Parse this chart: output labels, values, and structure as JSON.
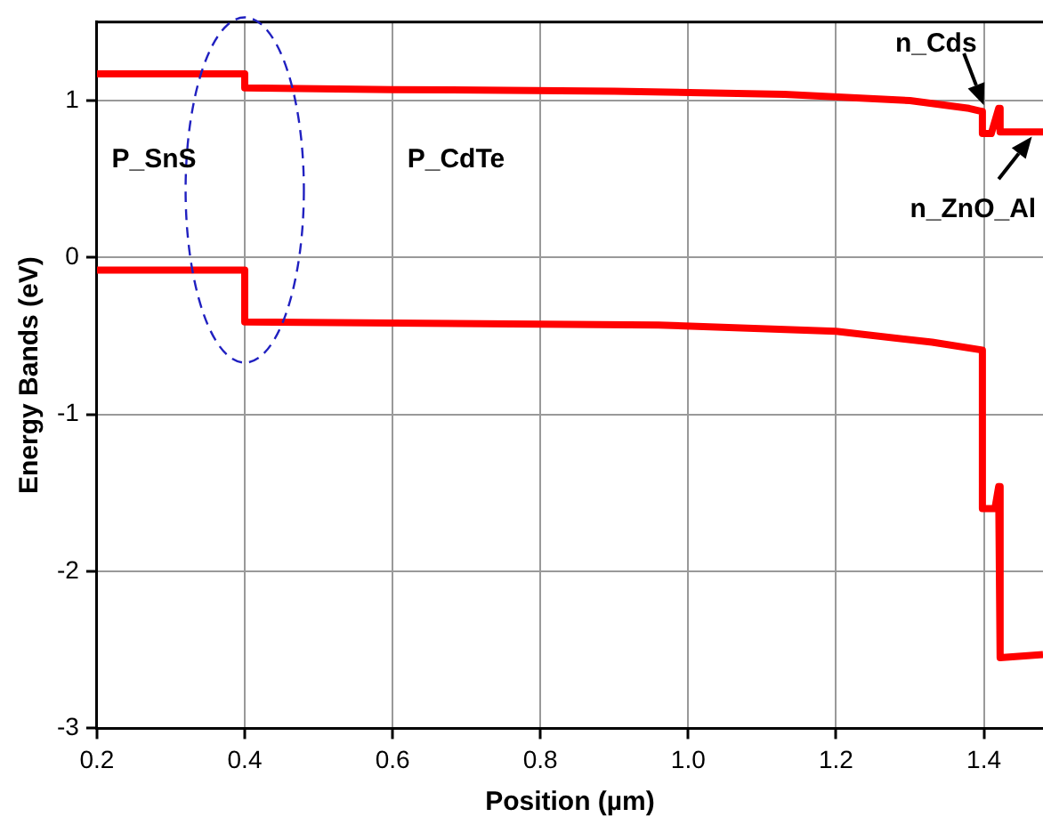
{
  "chart_data": {
    "type": "line",
    "xlabel": "Position (µm)",
    "ylabel": "Energy Bands (eV)",
    "xlim": [
      0.2,
      1.48
    ],
    "xticks": [
      {
        "value": 0.2,
        "label": "0.2"
      },
      {
        "value": 0.4,
        "label": "0.4"
      },
      {
        "value": 0.6,
        "label": "0.6"
      },
      {
        "value": 0.8,
        "label": "0.8"
      },
      {
        "value": 1.0,
        "label": "1.0"
      },
      {
        "value": 1.2,
        "label": "1.2"
      },
      {
        "value": 1.4,
        "label": "1.4"
      }
    ],
    "ylim": [
      -3,
      1.5
    ],
    "yticks": [
      -3,
      -2,
      -1,
      0,
      1
    ],
    "grid": true,
    "legend": false,
    "marker": "none",
    "line_style": "solid",
    "annotations": [
      "P_SnS",
      "P_CdTe",
      "n_Cds",
      "n_ZnO_Al"
    ],
    "series": [
      {
        "color": "#ff0000",
        "x": [
          0.2,
          0.4,
          0.4,
          0.6,
          0.9,
          1.13,
          1.3,
          1.38,
          1.398,
          1.398,
          1.41,
          1.42,
          1.422,
          1.48
        ],
        "values": [
          1.17,
          1.17,
          1.08,
          1.07,
          1.06,
          1.04,
          1.0,
          0.95,
          0.93,
          0.79,
          0.79,
          0.95,
          0.8,
          0.8
        ]
      },
      {
        "color": "#ff0000",
        "x": [
          0.2,
          0.4,
          0.4,
          0.96,
          1.2,
          1.33,
          1.398,
          1.398,
          1.415,
          1.42,
          1.422,
          1.48
        ],
        "values": [
          -0.08,
          -0.08,
          -0.41,
          -0.43,
          -0.47,
          -0.54,
          -0.59,
          -1.6,
          -1.6,
          -1.46,
          -2.55,
          -2.53
        ]
      }
    ]
  }
}
